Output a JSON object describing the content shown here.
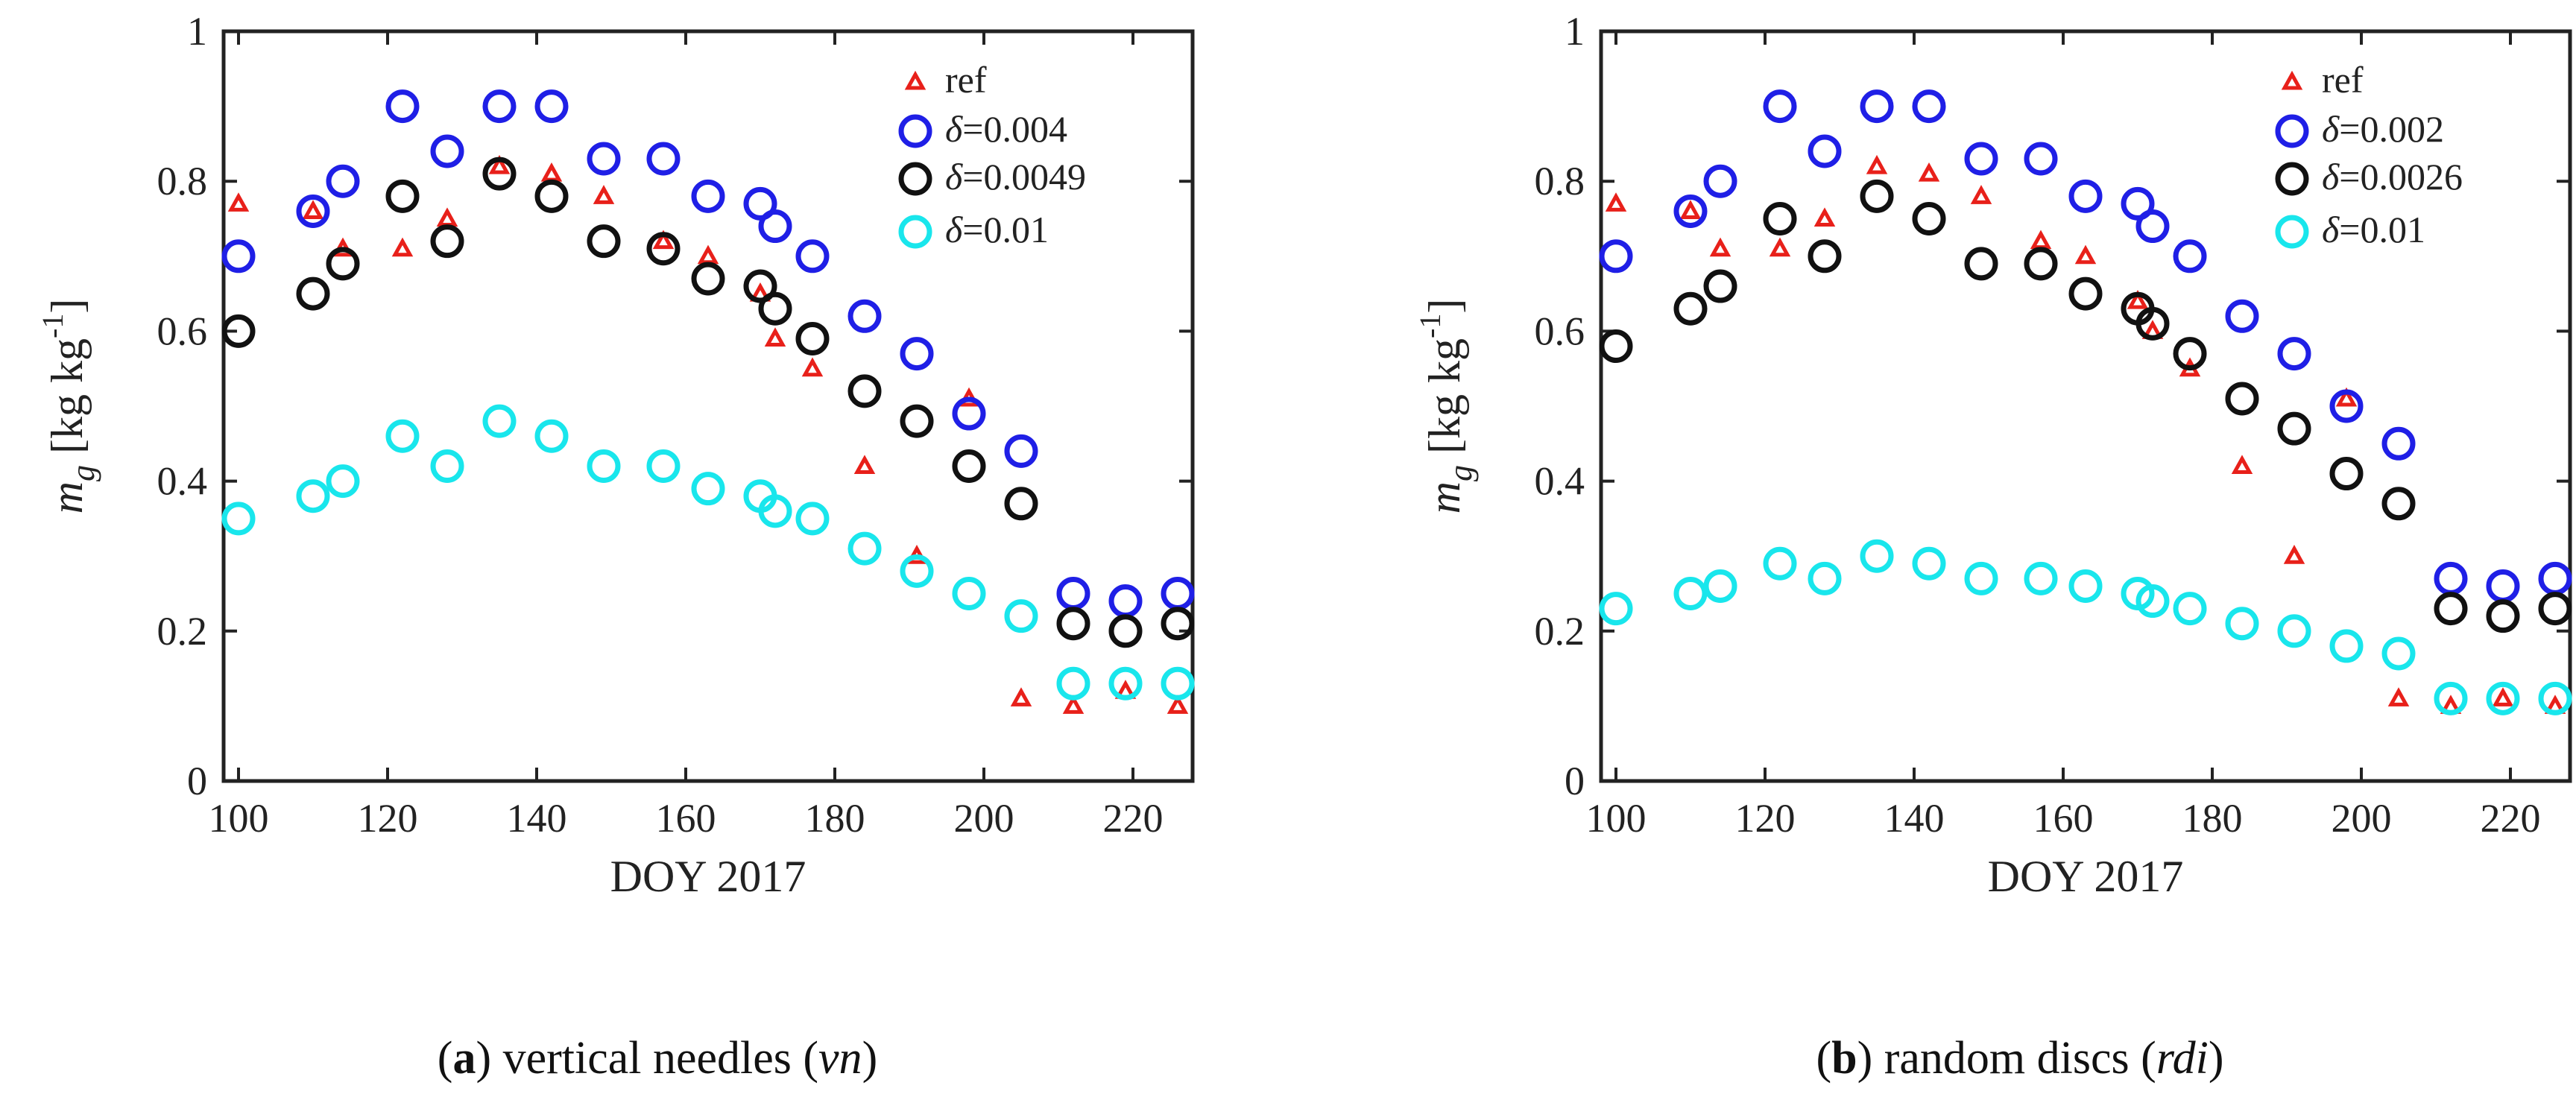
{
  "chart_data": [
    {
      "type": "scatter",
      "caption": {
        "letter": "(a)",
        "text": " vertical needles (",
        "italic": "vn",
        "end": ")"
      },
      "xlabel": "DOY 2017",
      "ylabel": "m",
      "ylabel_sub": "g",
      "ylabel_unit": "[kg kg",
      "ylabel_sup": "-1",
      "ylabel_close": "]",
      "xlim": [
        98,
        228
      ],
      "ylim": [
        0,
        1
      ],
      "xticks": [
        100,
        120,
        140,
        160,
        180,
        200,
        220
      ],
      "yticks": [
        0,
        0.2,
        0.4,
        0.6,
        0.8,
        1
      ],
      "ytick_labels": [
        "0",
        "0.2",
        "0.4",
        "0.6",
        "0.8",
        "1"
      ],
      "legend_position": "top-right",
      "series": [
        {
          "name": "ref",
          "marker": "triangle",
          "color": "#e8201a",
          "x": [
            100,
            110,
            114,
            122,
            128,
            135,
            142,
            149,
            157,
            163,
            170,
            172,
            177,
            184,
            191,
            198,
            205,
            212,
            219,
            226
          ],
          "y": [
            0.77,
            0.76,
            0.71,
            0.71,
            0.75,
            0.82,
            0.81,
            0.78,
            0.72,
            0.7,
            0.65,
            0.59,
            0.55,
            0.42,
            0.3,
            0.51,
            0.11,
            0.1,
            0.12,
            0.1
          ]
        },
        {
          "name_prefix": "δ",
          "name_value": "=0.004",
          "marker": "circle",
          "color": "#1f1fe6",
          "x": [
            100,
            110,
            114,
            122,
            128,
            135,
            142,
            149,
            157,
            163,
            170,
            172,
            177,
            184,
            191,
            198,
            205,
            212,
            219,
            226
          ],
          "y": [
            0.7,
            0.76,
            0.8,
            0.9,
            0.84,
            0.9,
            0.9,
            0.83,
            0.83,
            0.78,
            0.77,
            0.74,
            0.7,
            0.62,
            0.57,
            0.49,
            0.44,
            0.25,
            0.24,
            0.25
          ]
        },
        {
          "name_prefix": "δ",
          "name_value": "=0.0049",
          "marker": "circle",
          "color": "#111111",
          "x": [
            100,
            110,
            114,
            122,
            128,
            135,
            142,
            149,
            157,
            163,
            170,
            172,
            177,
            184,
            191,
            198,
            205,
            212,
            219,
            226
          ],
          "y": [
            0.6,
            0.65,
            0.69,
            0.78,
            0.72,
            0.81,
            0.78,
            0.72,
            0.71,
            0.67,
            0.66,
            0.63,
            0.59,
            0.52,
            0.48,
            0.42,
            0.37,
            0.21,
            0.2,
            0.21
          ]
        },
        {
          "name_prefix": "δ",
          "name_value": "=0.01",
          "marker": "circle",
          "color": "#19e6ec",
          "x": [
            100,
            110,
            114,
            122,
            128,
            135,
            142,
            149,
            157,
            163,
            170,
            172,
            177,
            184,
            191,
            198,
            205,
            212,
            219,
            226
          ],
          "y": [
            0.35,
            0.38,
            0.4,
            0.46,
            0.42,
            0.48,
            0.46,
            0.42,
            0.42,
            0.39,
            0.38,
            0.36,
            0.35,
            0.31,
            0.28,
            0.25,
            0.22,
            0.13,
            0.13,
            0.13
          ]
        }
      ]
    },
    {
      "type": "scatter",
      "caption": {
        "letter": "(b)",
        "text": " random discs (",
        "italic": "rdi",
        "end": ")"
      },
      "xlabel": "DOY 2017",
      "ylabel": "m",
      "ylabel_sub": "g",
      "ylabel_unit": "[kg kg",
      "ylabel_sup": "-1",
      "ylabel_close": "]",
      "xlim": [
        98,
        228
      ],
      "ylim": [
        0,
        1
      ],
      "xticks": [
        100,
        120,
        140,
        160,
        180,
        200,
        220
      ],
      "yticks": [
        0,
        0.2,
        0.4,
        0.6,
        0.8,
        1
      ],
      "ytick_labels": [
        "0",
        "0.2",
        "0.4",
        "0.6",
        "0.8",
        "1"
      ],
      "legend_position": "top-right",
      "series": [
        {
          "name": "ref",
          "marker": "triangle",
          "color": "#e8201a",
          "x": [
            100,
            110,
            114,
            122,
            128,
            135,
            142,
            149,
            157,
            163,
            170,
            172,
            177,
            184,
            191,
            198,
            205,
            212,
            219,
            226
          ],
          "y": [
            0.77,
            0.76,
            0.71,
            0.71,
            0.75,
            0.82,
            0.81,
            0.78,
            0.72,
            0.7,
            0.64,
            0.6,
            0.55,
            0.42,
            0.3,
            0.51,
            0.11,
            0.1,
            0.11,
            0.1
          ]
        },
        {
          "name_prefix": "δ",
          "name_value": "=0.002",
          "marker": "circle",
          "color": "#1f1fe6",
          "x": [
            100,
            110,
            114,
            122,
            128,
            135,
            142,
            149,
            157,
            163,
            170,
            172,
            177,
            184,
            191,
            198,
            205,
            212,
            219,
            226
          ],
          "y": [
            0.7,
            0.76,
            0.8,
            0.9,
            0.84,
            0.9,
            0.9,
            0.83,
            0.83,
            0.78,
            0.77,
            0.74,
            0.7,
            0.62,
            0.57,
            0.5,
            0.45,
            0.27,
            0.26,
            0.27
          ]
        },
        {
          "name_prefix": "δ",
          "name_value": "=0.0026",
          "marker": "circle",
          "color": "#111111",
          "x": [
            100,
            110,
            114,
            122,
            128,
            135,
            142,
            149,
            157,
            163,
            170,
            172,
            177,
            184,
            191,
            198,
            205,
            212,
            219,
            226
          ],
          "y": [
            0.58,
            0.63,
            0.66,
            0.75,
            0.7,
            0.78,
            0.75,
            0.69,
            0.69,
            0.65,
            0.63,
            0.61,
            0.57,
            0.51,
            0.47,
            0.41,
            0.37,
            0.23,
            0.22,
            0.23
          ]
        },
        {
          "name_prefix": "δ",
          "name_value": "=0.01",
          "marker": "circle",
          "color": "#19e6ec",
          "x": [
            100,
            110,
            114,
            122,
            128,
            135,
            142,
            149,
            157,
            163,
            170,
            172,
            177,
            184,
            191,
            198,
            205,
            212,
            219,
            226
          ],
          "y": [
            0.23,
            0.25,
            0.26,
            0.29,
            0.27,
            0.3,
            0.29,
            0.27,
            0.27,
            0.26,
            0.25,
            0.24,
            0.23,
            0.21,
            0.2,
            0.18,
            0.17,
            0.11,
            0.11,
            0.11
          ]
        }
      ]
    }
  ]
}
